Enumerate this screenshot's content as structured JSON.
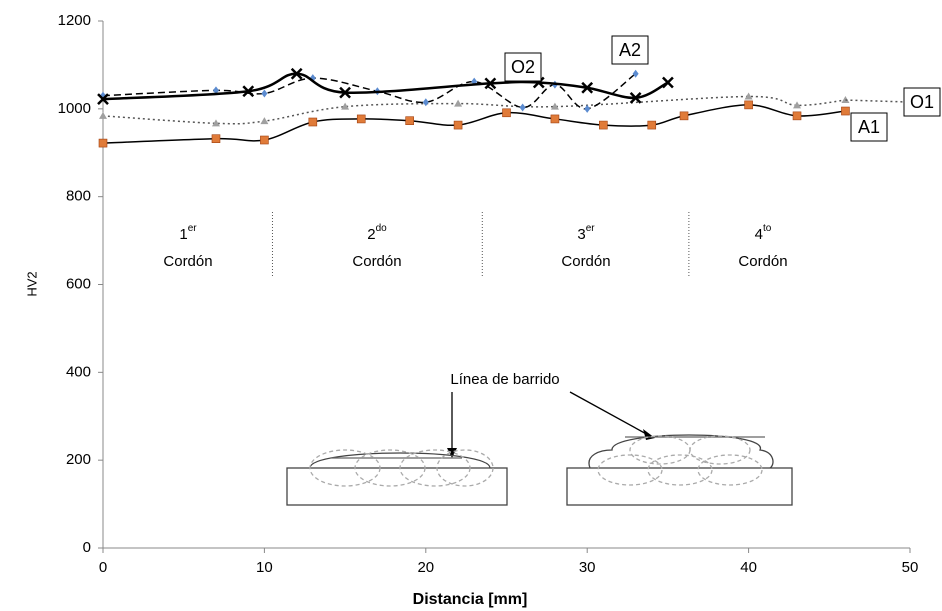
{
  "chart_data": {
    "type": "line",
    "x_label": "Distancia [mm]",
    "y_label": "HV2",
    "xlim": [
      0,
      50
    ],
    "xticks": [
      0,
      10,
      20,
      30,
      40,
      50
    ],
    "ylim": [
      0,
      1200
    ],
    "yticks": [
      0,
      200,
      400,
      600,
      800,
      1000,
      1200
    ],
    "series": [
      {
        "name": "A1",
        "color": "#e07b39",
        "line_style": "solid",
        "marker": "square",
        "x": [
          0,
          7,
          10,
          13,
          16,
          19,
          22,
          25,
          28,
          31,
          34,
          36,
          40,
          43,
          46
        ],
        "values": [
          922,
          932,
          929,
          970,
          977,
          973,
          963,
          991,
          977,
          963,
          963,
          984,
          1009,
          984,
          995
        ]
      },
      {
        "name": "O1",
        "color": "#a0a0a0",
        "line_style": "dotted",
        "marker": "triangle",
        "x": [
          0,
          7,
          10,
          15,
          22,
          28,
          40,
          43,
          46
        ],
        "values": [
          984,
          967,
          972,
          1005,
          1012,
          1005,
          1028,
          1008,
          1020
        ]
      },
      {
        "name": "A2",
        "color": "#5b8bd0",
        "line_style": "dashed",
        "marker": "diamond",
        "x": [
          0,
          7,
          10,
          13,
          17,
          20,
          23,
          26,
          28,
          30,
          33
        ],
        "values": [
          1030,
          1042,
          1035,
          1070,
          1040,
          1015,
          1062,
          1003,
          1055,
          1000,
          1080
        ]
      },
      {
        "name": "O2",
        "color": "#000000",
        "line_style": "solid",
        "marker": "x",
        "x": [
          0,
          9,
          12,
          15,
          24,
          27,
          30,
          33,
          35
        ],
        "values": [
          1022,
          1040,
          1080,
          1037,
          1058,
          1060,
          1048,
          1025,
          1060
        ]
      }
    ],
    "sections": [
      {
        "number": "1",
        "sup": "er",
        "name": "Cordón"
      },
      {
        "number": "2",
        "sup": "do",
        "name": "Cordón"
      },
      {
        "number": "3",
        "sup": "er",
        "name": "Cordón"
      },
      {
        "number": "4",
        "sup": "to",
        "name": "Cordón"
      }
    ],
    "section_dividers": [
      10.5,
      23.5,
      36.3
    ],
    "annotation": "Línea de barrido"
  }
}
